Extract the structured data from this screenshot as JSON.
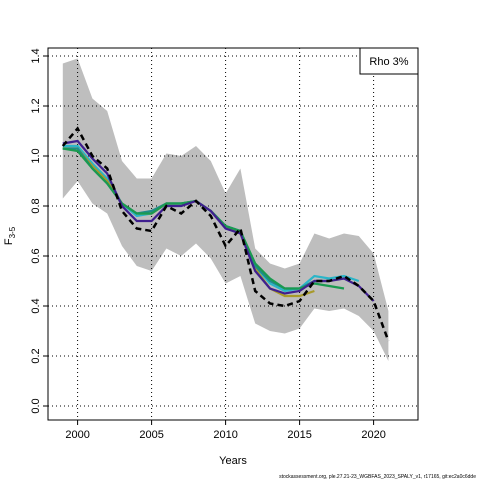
{
  "chart_data": {
    "type": "line",
    "xlabel": "Years",
    "ylabel": "F",
    "ylabel_sub": "3-5",
    "annotation": "Rho 3%",
    "footer": "stockassessment.org, ple.27.21-23_WGBFAS_2023_SPALY_v1, r17165, git:ec2a0c6dde",
    "x": [
      1999,
      2000,
      2001,
      2002,
      2003,
      2004,
      2005,
      2006,
      2007,
      2008,
      2009,
      2010,
      2011,
      2012,
      2013,
      2014,
      2015,
      2016,
      2017,
      2018,
      2019,
      2020,
      2021
    ],
    "xlim": [
      1998,
      2023
    ],
    "xticks": [
      2000,
      2005,
      2010,
      2015,
      2020
    ],
    "ylim": [
      -0.056,
      1.432
    ],
    "yticks": [
      {
        "value": 0,
        "label": "0.0"
      },
      0.2,
      0.4,
      0.6,
      0.8,
      {
        "value": 1,
        "label": "1.0"
      },
      1.2,
      1.4
    ],
    "grid": true,
    "band": {
      "color": "#bebebe",
      "upper": [
        1.37,
        1.39,
        1.23,
        1.18,
        0.98,
        0.91,
        0.91,
        1.01,
        1.0,
        1.04,
        0.98,
        0.85,
        0.95,
        0.63,
        0.57,
        0.55,
        0.57,
        0.69,
        0.67,
        0.69,
        0.68,
        0.61,
        0.38
      ],
      "lower": [
        0.83,
        0.9,
        0.81,
        0.77,
        0.64,
        0.56,
        0.54,
        0.63,
        0.6,
        0.65,
        0.59,
        0.49,
        0.52,
        0.33,
        0.3,
        0.29,
        0.31,
        0.39,
        0.38,
        0.39,
        0.36,
        0.3,
        0.18
      ]
    },
    "series": [
      {
        "color": "#2ab5c8",
        "values": [
          1.04,
          1.04,
          0.97,
          0.91,
          0.81,
          0.76,
          0.77,
          0.81,
          0.81,
          0.82,
          0.78,
          0.72,
          0.7,
          0.56,
          0.49,
          0.46,
          0.47,
          0.52,
          0.51,
          0.52,
          0.5,
          null,
          null
        ]
      },
      {
        "color": "#a89a2a",
        "values": [
          1.03,
          1.03,
          0.96,
          0.9,
          0.81,
          0.77,
          0.77,
          0.81,
          0.81,
          0.82,
          0.78,
          0.72,
          0.69,
          0.55,
          0.47,
          0.44,
          0.44,
          0.46,
          null,
          null,
          null,
          null,
          null
        ]
      },
      {
        "color": "#1f8a8a",
        "values": [
          1.03,
          1.03,
          0.95,
          0.89,
          0.81,
          0.77,
          0.78,
          0.81,
          0.81,
          0.82,
          0.78,
          0.72,
          0.7,
          0.56,
          0.5,
          0.47,
          0.47,
          0.5,
          0.5,
          null,
          null,
          null,
          null
        ]
      },
      {
        "color": "#1a9a50",
        "values": [
          1.03,
          1.02,
          0.95,
          0.89,
          0.81,
          0.77,
          0.77,
          0.81,
          0.81,
          0.82,
          0.78,
          0.72,
          0.7,
          0.57,
          0.51,
          0.47,
          0.47,
          0.49,
          0.48,
          0.47,
          null,
          null,
          null
        ]
      },
      {
        "color": "#3f1f8f",
        "values": [
          1.05,
          1.06,
          0.99,
          0.93,
          0.8,
          0.74,
          0.74,
          0.8,
          0.8,
          0.82,
          0.78,
          0.71,
          0.69,
          0.54,
          0.47,
          0.45,
          0.46,
          0.5,
          0.5,
          0.51,
          0.48,
          0.42,
          null
        ]
      },
      {
        "color": "#000000",
        "dashed": true,
        "values": [
          1.04,
          1.11,
          1.0,
          0.95,
          0.78,
          0.71,
          0.7,
          0.8,
          0.77,
          0.82,
          0.76,
          0.64,
          0.71,
          0.46,
          0.41,
          0.4,
          0.42,
          0.5,
          0.5,
          0.52,
          0.48,
          0.42,
          0.26
        ]
      }
    ]
  }
}
